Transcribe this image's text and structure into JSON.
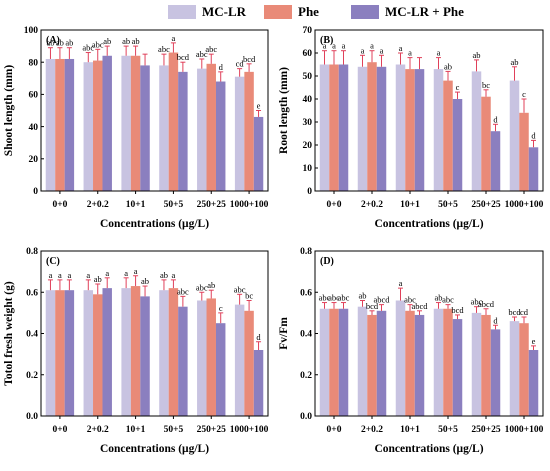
{
  "colors": {
    "mc_lr": "#c8c3e1",
    "phe": "#e98a78",
    "combo": "#8b7fbf",
    "error": "#e0405a"
  },
  "legend": [
    {
      "label": "MC-LR",
      "color": "#c8c3e1"
    },
    {
      "label": "Phe",
      "color": "#e98a78"
    },
    {
      "label": "MC-LR + Phe",
      "color": "#8b7fbf"
    }
  ],
  "chart_data": [
    {
      "type": "bar",
      "panel_label": "(A)",
      "xlabel": "Concentrations (μg/L)",
      "ylabel": "Shoot length (mm)",
      "categories": [
        "0+0",
        "2+0.2",
        "10+1",
        "50+5",
        "250+25",
        "1000+100"
      ],
      "ylim": [
        0,
        100
      ],
      "yticks": [
        0,
        20,
        40,
        60,
        80,
        100
      ],
      "series": [
        {
          "name": "MC-LR",
          "values": [
            82,
            80,
            84,
            78,
            76,
            71
          ],
          "errors": [
            7,
            6,
            6,
            7,
            6,
            5
          ],
          "letters": [
            "ab",
            "abc",
            "ab",
            "abc",
            "abc",
            "cd"
          ]
        },
        {
          "name": "Phe",
          "values": [
            82,
            81,
            84,
            86,
            79,
            74
          ],
          "errors": [
            7,
            7,
            6,
            6,
            6,
            5
          ],
          "letters": [
            "ab",
            "abc",
            "ab",
            "a",
            "abc",
            "bcd"
          ]
        },
        {
          "name": "MC-LR + Phe",
          "values": [
            82,
            84,
            78,
            74,
            68,
            46
          ],
          "errors": [
            7,
            6,
            7,
            6,
            6,
            4
          ],
          "letters": [
            "ab",
            "ab",
            "",
            "bcd",
            "d",
            "e"
          ]
        }
      ]
    },
    {
      "type": "bar",
      "panel_label": "(B)",
      "xlabel": "Concentrations (μg/L)",
      "ylabel": "Root length (mm)",
      "categories": [
        "0+0",
        "2+0.2",
        "10+1",
        "50+5",
        "250+25",
        "1000+100"
      ],
      "ylim": [
        0,
        70
      ],
      "yticks": [
        0,
        10,
        20,
        30,
        40,
        50,
        60,
        70
      ],
      "series": [
        {
          "name": "MC-LR",
          "values": [
            55,
            54,
            55,
            53,
            52,
            48
          ],
          "errors": [
            6,
            5,
            5,
            5,
            5,
            6
          ],
          "letters": [
            "a",
            "a",
            "a",
            "a",
            "ab",
            "ab"
          ]
        },
        {
          "name": "Phe",
          "values": [
            55,
            56,
            53,
            48,
            41,
            34
          ],
          "errors": [
            6,
            5,
            5,
            4,
            3,
            6
          ],
          "letters": [
            "a",
            "a",
            "a",
            "ab",
            "bc",
            "c"
          ]
        },
        {
          "name": "MC-LR + Phe",
          "values": [
            55,
            54,
            53,
            40,
            26,
            19
          ],
          "errors": [
            6,
            5,
            5,
            3,
            3,
            3
          ],
          "letters": [
            "a",
            "a",
            "",
            "c",
            "d",
            "d"
          ]
        }
      ]
    },
    {
      "type": "bar",
      "panel_label": "(C)",
      "xlabel": "Concentrations (μg/L)",
      "ylabel": "Totol fresh weight (g)",
      "categories": [
        "0+0",
        "2+0.2",
        "10+1",
        "50+5",
        "250+25",
        "1000+100"
      ],
      "ylim": [
        0,
        0.8
      ],
      "yticks": [
        0.0,
        0.2,
        0.4,
        0.6,
        0.8
      ],
      "series": [
        {
          "name": "MC-LR",
          "values": [
            0.61,
            0.61,
            0.62,
            0.61,
            0.56,
            0.54
          ],
          "errors": [
            0.05,
            0.05,
            0.05,
            0.05,
            0.04,
            0.05
          ],
          "letters": [
            "a",
            "a",
            "a",
            "ab",
            "abc",
            "abc"
          ]
        },
        {
          "name": "Phe",
          "values": [
            0.61,
            0.59,
            0.63,
            0.62,
            0.57,
            0.51
          ],
          "errors": [
            0.05,
            0.05,
            0.05,
            0.04,
            0.04,
            0.05
          ],
          "letters": [
            "a",
            "ab",
            "a",
            "a",
            "ab",
            "bc"
          ]
        },
        {
          "name": "MC-LR + Phe",
          "values": [
            0.61,
            0.62,
            0.58,
            0.53,
            0.45,
            0.32
          ],
          "errors": [
            0.05,
            0.05,
            0.05,
            0.05,
            0.05,
            0.04
          ],
          "letters": [
            "a",
            "a",
            "ab",
            "abc",
            "c",
            "d"
          ]
        }
      ]
    },
    {
      "type": "bar",
      "panel_label": "(D)",
      "xlabel": "Concentrations (μg/L)",
      "ylabel": "Fv/Fm",
      "categories": [
        "0+0",
        "2+0.2",
        "10+1",
        "50+5",
        "250+25",
        "1000+100"
      ],
      "ylim": [
        0,
        0.8
      ],
      "yticks": [
        0.0,
        0.2,
        0.4,
        0.6,
        0.8
      ],
      "series": [
        {
          "name": "MC-LR",
          "values": [
            0.52,
            0.53,
            0.56,
            0.52,
            0.5,
            0.46
          ],
          "errors": [
            0.03,
            0.03,
            0.06,
            0.03,
            0.03,
            0.02
          ],
          "letters": [
            "abc",
            "ab",
            "a",
            "ab",
            "abc",
            "bcd"
          ]
        },
        {
          "name": "Phe",
          "values": [
            0.52,
            0.49,
            0.51,
            0.52,
            0.49,
            0.45
          ],
          "errors": [
            0.03,
            0.02,
            0.03,
            0.02,
            0.03,
            0.03
          ],
          "letters": [
            "abc",
            "bcd",
            "abc",
            "abc",
            "abcd",
            "cd"
          ]
        },
        {
          "name": "MC-LR + Phe",
          "values": [
            0.52,
            0.51,
            0.49,
            0.47,
            0.42,
            0.32
          ],
          "errors": [
            0.03,
            0.03,
            0.02,
            0.02,
            0.02,
            0.02
          ],
          "letters": [
            "abc",
            "abcd",
            "abcd",
            "bcd",
            "d",
            "e"
          ]
        }
      ]
    }
  ]
}
